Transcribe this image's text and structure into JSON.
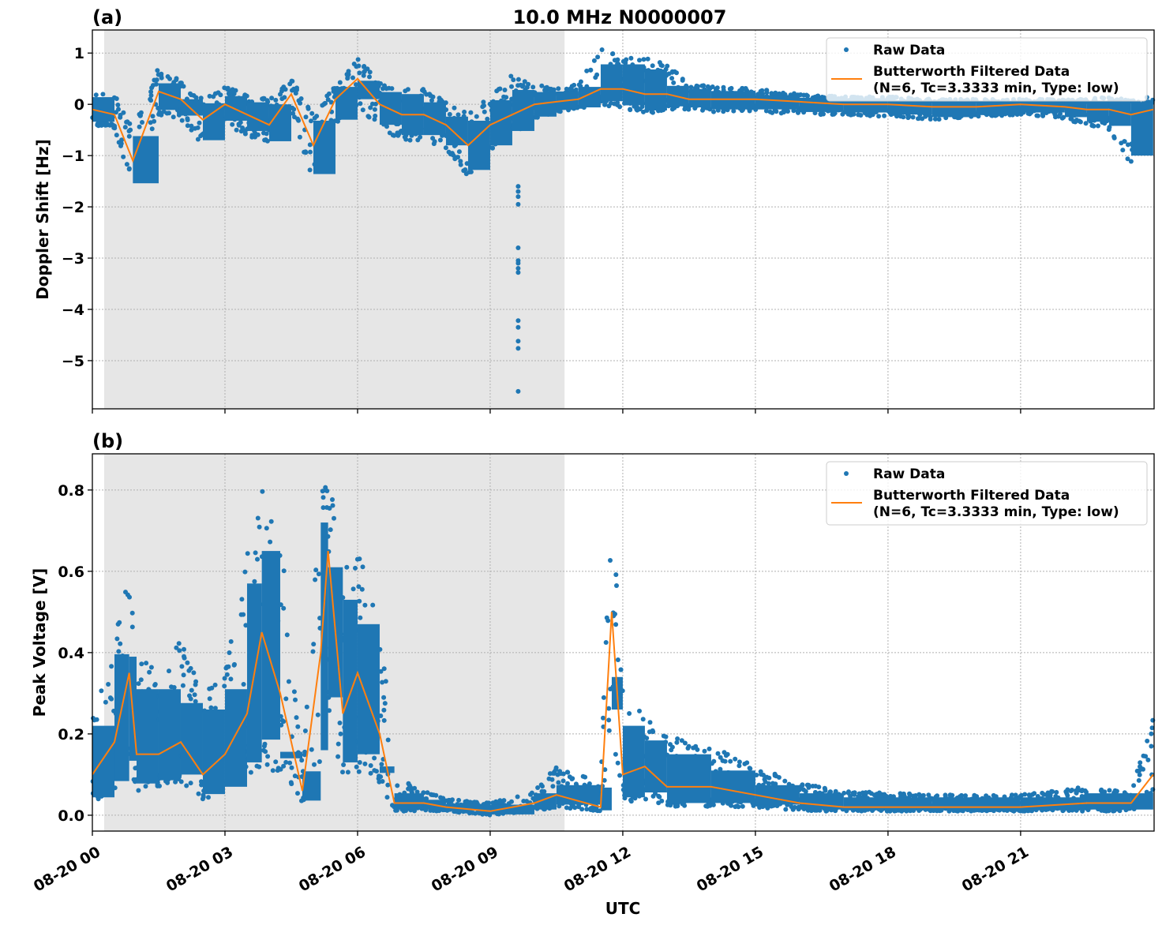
{
  "figure_title": "10.0 MHz N0000007",
  "chart_data": [
    {
      "type": "scatter+line",
      "panel_label": "(a)",
      "ylabel": "Doppler Shift [Hz]",
      "xlabel": "",
      "ylim": [
        -5.94,
        1.45
      ],
      "yticks": [
        1,
        0,
        -1,
        -2,
        -3,
        -4,
        -5
      ],
      "ytick_labels": [
        "1",
        "0",
        "−1",
        "−2",
        "−3",
        "−4",
        "−5"
      ],
      "grid": true,
      "legend_placement": "top-right",
      "shaded_span": [
        "00:16",
        "10:41"
      ],
      "series": [
        {
          "name": "Raw Data",
          "kind": "points",
          "color": "#1f77b4"
        },
        {
          "name": "Butterworth Filtered Data",
          "name_line2": "(N=6, Tc=3.3333 min, Type: low)",
          "kind": "line",
          "color": "#ff7f0e"
        }
      ],
      "x": [
        "00:00",
        "00:30",
        "00:55",
        "01:30",
        "02:00",
        "02:30",
        "03:00",
        "03:30",
        "04:00",
        "04:30",
        "05:00",
        "05:30",
        "06:00",
        "06:30",
        "07:00",
        "07:30",
        "08:00",
        "08:30",
        "09:00",
        "09:30",
        "10:00",
        "10:30",
        "11:00",
        "11:30",
        "12:00",
        "12:30",
        "13:00",
        "13:30",
        "14:00",
        "15:00",
        "16:00",
        "17:00",
        "18:00",
        "19:00",
        "20:00",
        "21:00",
        "22:00",
        "22:30",
        "23:00",
        "23:30",
        "24:00"
      ],
      "filtered": [
        -0.1,
        -0.2,
        -1.1,
        0.25,
        0.1,
        -0.3,
        0.0,
        -0.2,
        -0.4,
        0.2,
        -0.8,
        0.1,
        0.5,
        0.0,
        -0.2,
        -0.2,
        -0.4,
        -0.8,
        -0.4,
        -0.2,
        0.0,
        0.05,
        0.1,
        0.3,
        0.3,
        0.2,
        0.2,
        0.1,
        0.1,
        0.1,
        0.05,
        0.0,
        0.0,
        -0.05,
        -0.05,
        0.0,
        -0.05,
        -0.1,
        -0.1,
        -0.2,
        -0.1
      ],
      "raw_low": [
        -0.4,
        -0.5,
        -1.65,
        -0.2,
        -0.3,
        -0.8,
        -0.4,
        -0.6,
        -0.8,
        -0.2,
        -1.5,
        -0.4,
        0.0,
        -0.5,
        -0.7,
        -0.7,
        -0.9,
        -1.4,
        -0.9,
        -0.6,
        -0.3,
        -0.15,
        -0.1,
        0.0,
        -0.1,
        -0.2,
        -0.1,
        -0.1,
        -0.15,
        -0.15,
        -0.2,
        -0.2,
        -0.25,
        -0.3,
        -0.25,
        -0.2,
        -0.3,
        -0.4,
        -0.5,
        -1.2,
        -0.4
      ],
      "raw_high": [
        0.25,
        0.2,
        -0.5,
        0.75,
        0.45,
        0.1,
        0.35,
        0.2,
        0.1,
        0.5,
        -0.2,
        0.4,
        0.9,
        0.45,
        0.3,
        0.3,
        0.1,
        -0.2,
        0.2,
        0.6,
        0.4,
        0.3,
        0.4,
        1.1,
        0.9,
        0.9,
        0.8,
        0.4,
        0.35,
        0.3,
        0.2,
        0.15,
        0.15,
        0.1,
        0.1,
        0.1,
        0.1,
        0.1,
        0.15,
        0.1,
        0.15
      ],
      "outliers": {
        "x": "09:38",
        "y": [
          -1.6,
          -1.7,
          -1.8,
          -1.95,
          -2.8,
          -3.05,
          -3.1,
          -3.2,
          -3.28,
          -4.22,
          -4.35,
          -4.62,
          -4.76,
          -5.6
        ]
      }
    },
    {
      "type": "scatter+line",
      "panel_label": "(b)",
      "ylabel": "Peak Voltage [V]",
      "xlabel": "UTC",
      "ylim": [
        -0.039,
        0.889
      ],
      "yticks": [
        0.0,
        0.2,
        0.4,
        0.6,
        0.8
      ],
      "ytick_labels": [
        "0.0",
        "0.2",
        "0.4",
        "0.6",
        "0.8"
      ],
      "grid": true,
      "legend_placement": "top-right",
      "shaded_span": [
        "00:16",
        "10:41"
      ],
      "series": [
        {
          "name": "Raw Data",
          "kind": "points",
          "color": "#1f77b4"
        },
        {
          "name": "Butterworth Filtered Data",
          "name_line2": "(N=6, Tc=3.3333 min, Type: low)",
          "kind": "line",
          "color": "#ff7f0e"
        }
      ],
      "x": [
        "00:00",
        "00:30",
        "00:50",
        "01:00",
        "01:30",
        "02:00",
        "02:30",
        "03:00",
        "03:30",
        "03:50",
        "04:15",
        "04:45",
        "05:10",
        "05:20",
        "05:40",
        "06:00",
        "06:30",
        "06:50",
        "07:30",
        "08:00",
        "09:00",
        "10:00",
        "10:30",
        "11:30",
        "11:45",
        "12:00",
        "12:30",
        "13:00",
        "14:00",
        "15:00",
        "16:00",
        "17:00",
        "19:00",
        "21:00",
        "22:30",
        "23:30",
        "24:00"
      ],
      "filtered": [
        0.1,
        0.18,
        0.35,
        0.15,
        0.15,
        0.18,
        0.1,
        0.15,
        0.25,
        0.45,
        0.3,
        0.06,
        0.4,
        0.65,
        0.25,
        0.35,
        0.2,
        0.03,
        0.03,
        0.02,
        0.01,
        0.03,
        0.05,
        0.02,
        0.5,
        0.1,
        0.12,
        0.07,
        0.07,
        0.05,
        0.03,
        0.02,
        0.02,
        0.02,
        0.03,
        0.03,
        0.1
      ],
      "raw_low": [
        0.03,
        0.06,
        0.08,
        0.06,
        0.07,
        0.08,
        0.04,
        0.05,
        0.1,
        0.12,
        0.1,
        0.03,
        0.1,
        0.2,
        0.1,
        0.1,
        0.08,
        0.01,
        0.01,
        0.01,
        0.0,
        0.01,
        0.02,
        0.01,
        0.2,
        0.03,
        0.04,
        0.02,
        0.02,
        0.02,
        0.01,
        0.01,
        0.01,
        0.01,
        0.01,
        0.01,
        0.04
      ],
      "raw_high": [
        0.25,
        0.45,
        0.6,
        0.4,
        0.35,
        0.45,
        0.3,
        0.35,
        0.65,
        0.8,
        0.7,
        0.12,
        0.8,
        0.85,
        0.6,
        0.65,
        0.5,
        0.1,
        0.06,
        0.04,
        0.03,
        0.06,
        0.12,
        0.08,
        0.84,
        0.3,
        0.25,
        0.2,
        0.17,
        0.12,
        0.08,
        0.06,
        0.05,
        0.05,
        0.07,
        0.06,
        0.24
      ]
    }
  ],
  "xtick_labels": [
    "08-20 00",
    "08-20 03",
    "08-20 06",
    "08-20 09",
    "08-20 12",
    "08-20 15",
    "08-20 18",
    "08-20 21"
  ]
}
